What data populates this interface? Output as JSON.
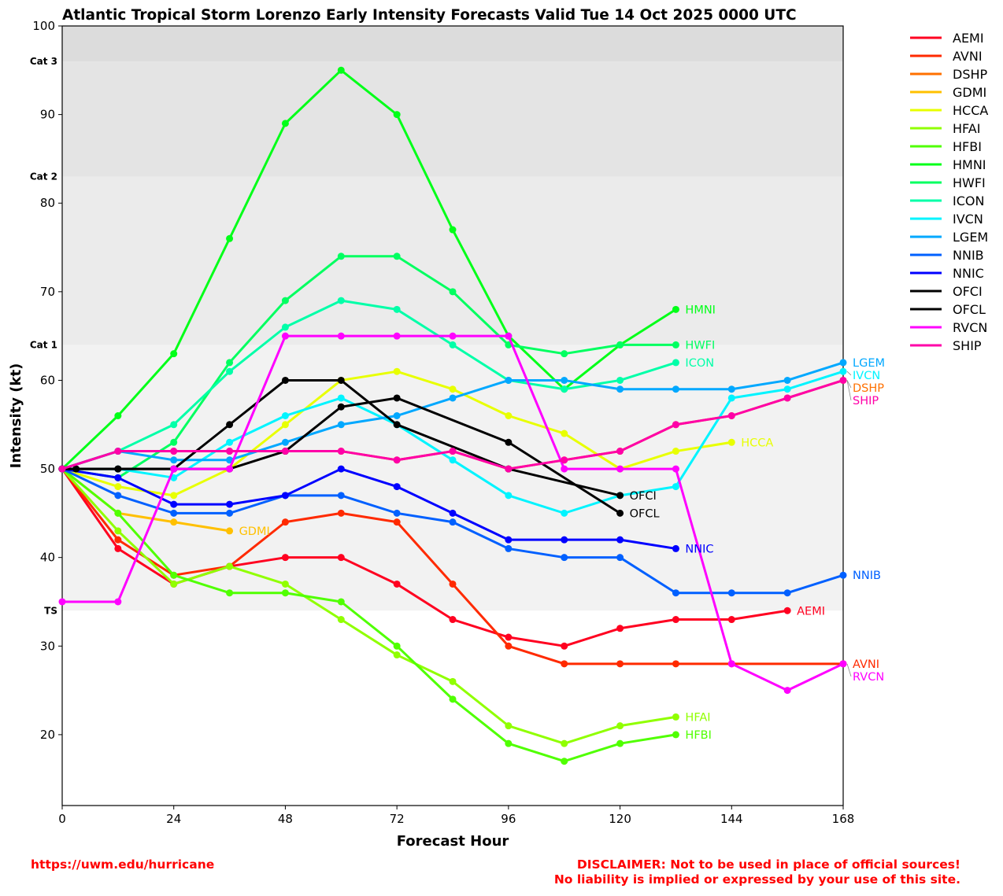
{
  "chart_data": {
    "type": "line",
    "title": "Atlantic Tropical Storm Lorenzo Early Intensity Forecasts Valid Tue 14 Oct 2025 0000 UTC",
    "xlabel": "Forecast Hour",
    "ylabel": "Intensity (kt)",
    "xlim": [
      0,
      168
    ],
    "ylim": [
      12,
      100
    ],
    "xticks": [
      0,
      24,
      48,
      72,
      96,
      120,
      144,
      168
    ],
    "yticks": [
      20,
      30,
      40,
      50,
      60,
      70,
      80,
      90,
      100
    ],
    "grid": false,
    "legend": "outside-right",
    "bands": [
      {
        "label": "Cat 3",
        "from": 96,
        "to": 100,
        "color": "#dcdcdc"
      },
      {
        "label": "Cat 2",
        "from": 83,
        "to": 96,
        "color": "#e4e4e4"
      },
      {
        "label": "Cat 1",
        "from": 64,
        "to": 83,
        "color": "#ebebeb"
      },
      {
        "label": "TS",
        "from": 34,
        "to": 64,
        "color": "#f2f2f2"
      }
    ],
    "series": [
      {
        "name": "AEMI",
        "color": "#ff0020",
        "x": [
          0,
          12,
          24,
          36,
          48,
          60,
          72,
          84,
          96,
          108,
          120,
          132,
          144,
          156
        ],
        "y": [
          50,
          41,
          37,
          39,
          40,
          40,
          37,
          33,
          31,
          30,
          32,
          33,
          33,
          34
        ]
      },
      {
        "name": "AVNI",
        "color": "#ff2a00",
        "x": [
          0,
          12,
          24,
          36,
          48,
          60,
          72,
          84,
          96,
          108,
          120,
          132,
          144,
          168
        ],
        "y": [
          50,
          42,
          38,
          39,
          44,
          45,
          44,
          37,
          30,
          28,
          28,
          28,
          28,
          28
        ]
      },
      {
        "name": "DSHP",
        "color": "#ff7000",
        "x": [
          0,
          12,
          24,
          36,
          48,
          60,
          72,
          84,
          96,
          108,
          120,
          132,
          144,
          156,
          168
        ],
        "y": [
          50,
          52,
          52,
          52,
          52,
          52,
          51,
          52,
          50,
          51,
          52,
          55,
          56,
          58,
          60
        ]
      },
      {
        "name": "GDMI",
        "color": "#ffc000",
        "x": [
          0,
          12,
          24,
          36
        ],
        "y": [
          50,
          45,
          44,
          43
        ]
      },
      {
        "name": "HCCA",
        "color": "#e8ff00",
        "x": [
          0,
          12,
          24,
          36,
          48,
          60,
          72,
          84,
          96,
          108,
          120,
          132,
          144
        ],
        "y": [
          50,
          48,
          47,
          50,
          55,
          60,
          61,
          59,
          56,
          54,
          50,
          52,
          53
        ]
      },
      {
        "name": "HFAI",
        "color": "#90ff00",
        "x": [
          0,
          12,
          24,
          36,
          48,
          60,
          72,
          84,
          96,
          108,
          120,
          132
        ],
        "y": [
          50,
          43,
          37,
          39,
          37,
          33,
          29,
          26,
          21,
          19,
          21,
          22
        ]
      },
      {
        "name": "HFBI",
        "color": "#50ff00",
        "x": [
          0,
          12,
          24,
          36,
          48,
          60,
          72,
          84,
          96,
          108,
          120,
          132
        ],
        "y": [
          50,
          45,
          38,
          36,
          36,
          35,
          30,
          24,
          19,
          17,
          19,
          20
        ]
      },
      {
        "name": "HMNI",
        "color": "#00ff18",
        "x": [
          0,
          12,
          24,
          36,
          48,
          60,
          72,
          84,
          96,
          108,
          120,
          132
        ],
        "y": [
          50,
          56,
          63,
          76,
          89,
          95,
          90,
          77,
          65,
          59,
          64,
          68
        ]
      },
      {
        "name": "HWFI",
        "color": "#00ff60",
        "x": [
          0,
          12,
          24,
          36,
          48,
          60,
          72,
          84,
          96,
          108,
          120,
          132
        ],
        "y": [
          50,
          49,
          53,
          62,
          69,
          74,
          74,
          70,
          64,
          63,
          64,
          64
        ]
      },
      {
        "name": "ICON",
        "color": "#00ffa8",
        "x": [
          0,
          12,
          24,
          36,
          48,
          60,
          72,
          84,
          96,
          108,
          120,
          132
        ],
        "y": [
          50,
          52,
          55,
          61,
          66,
          69,
          68,
          64,
          60,
          59,
          60,
          62
        ]
      },
      {
        "name": "IVCN",
        "color": "#00f4ff",
        "x": [
          0,
          12,
          24,
          36,
          48,
          60,
          72,
          84,
          96,
          108,
          120,
          132,
          144,
          156,
          168
        ],
        "y": [
          50,
          50,
          49,
          53,
          56,
          58,
          55,
          51,
          47,
          45,
          47,
          48,
          58,
          59,
          61
        ]
      },
      {
        "name": "LGEM",
        "color": "#00a8ff",
        "x": [
          0,
          12,
          24,
          36,
          48,
          60,
          72,
          84,
          96,
          108,
          120,
          132,
          144,
          156,
          168
        ],
        "y": [
          50,
          52,
          51,
          51,
          53,
          55,
          56,
          58,
          60,
          60,
          59,
          59,
          59,
          60,
          62
        ]
      },
      {
        "name": "NNIB",
        "color": "#0060ff",
        "x": [
          0,
          12,
          24,
          36,
          48,
          60,
          72,
          84,
          96,
          108,
          120,
          132,
          144,
          156,
          168
        ],
        "y": [
          50,
          47,
          45,
          45,
          47,
          47,
          45,
          44,
          41,
          40,
          40,
          36,
          36,
          36,
          38
        ]
      },
      {
        "name": "NNIC",
        "color": "#0000ff",
        "x": [
          0,
          12,
          24,
          36,
          48,
          60,
          72,
          84,
          96,
          108,
          120,
          132
        ],
        "y": [
          50,
          49,
          46,
          46,
          47,
          50,
          48,
          45,
          42,
          42,
          42,
          41
        ]
      },
      {
        "name": "OFCI",
        "color": "#000000",
        "x": [
          0,
          12,
          24,
          36,
          48,
          60,
          72,
          96,
          120
        ],
        "y": [
          50,
          50,
          50,
          55,
          60,
          60,
          55,
          50,
          47
        ]
      },
      {
        "name": "OFCL",
        "color": "#000000",
        "x": [
          0,
          3,
          12,
          24,
          36,
          48,
          60,
          72,
          96,
          120
        ],
        "y": [
          50,
          50,
          50,
          50,
          50,
          52,
          57,
          58,
          53,
          45
        ]
      },
      {
        "name": "RVCN",
        "color": "#ff00ff",
        "x": [
          0,
          12,
          24,
          36,
          48,
          60,
          72,
          84,
          96,
          108,
          120,
          132,
          144,
          156,
          168
        ],
        "y": [
          35,
          35,
          50,
          50,
          65,
          65,
          65,
          65,
          65,
          50,
          50,
          50,
          28,
          25,
          28
        ]
      },
      {
        "name": "SHIP",
        "color": "#ff00a8",
        "x": [
          0,
          12,
          24,
          36,
          48,
          60,
          72,
          84,
          96,
          108,
          120,
          132,
          144,
          156,
          168
        ],
        "y": [
          50,
          52,
          52,
          52,
          52,
          52,
          51,
          52,
          50,
          51,
          52,
          55,
          56,
          58,
          60
        ]
      }
    ]
  },
  "footer": {
    "url": "https://uwm.edu/hurricane",
    "disclaimer_line1": "DISCLAIMER: Not to be used in place of official sources!",
    "disclaimer_line2": "No liability is implied or expressed by your use of this site."
  }
}
